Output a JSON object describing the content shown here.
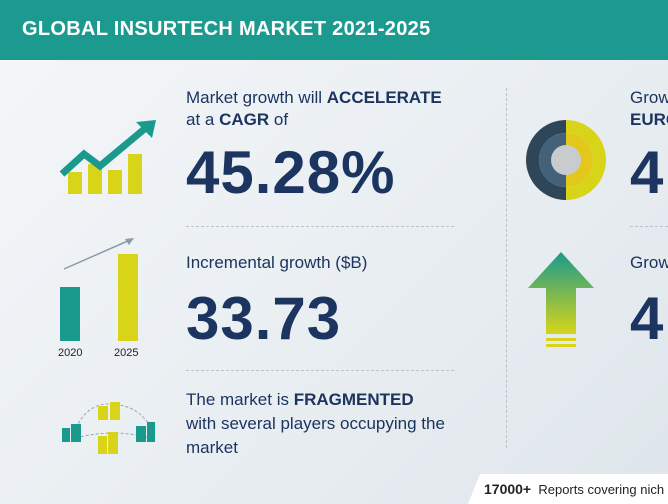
{
  "header": {
    "title": "GLOBAL INSURTECH MARKET 2021-2025"
  },
  "stats": {
    "growth": {
      "line1_pre": "Market growth will ",
      "line1_bold": "ACCELERATE",
      "line2_pre": "at a ",
      "line2_bold": "CAGR",
      "line2_post": " of",
      "value": "45.28%"
    },
    "incremental": {
      "label": "Incremental growth ($B)",
      "value": "33.73",
      "year_start": "2020",
      "year_end": "2025",
      "bar_start": 0.62,
      "bar_end": 1.0
    },
    "market": {
      "line1_pre": "The market is ",
      "line1_bold": "FRAGMENTED",
      "line2": "with several players occupying the",
      "line3": "market"
    }
  },
  "right": {
    "region_label_1": "Grow",
    "region_label_2": "EURO",
    "region_value": "4",
    "segment_label": "Grow",
    "segment_value": "4"
  },
  "footer": {
    "count": "17000+",
    "text": "Reports covering nich"
  },
  "colors": {
    "header": "#1d9a8f",
    "teal": "#1a9a8c",
    "yellow": "#d7d41a",
    "navy": "#1b3560"
  }
}
